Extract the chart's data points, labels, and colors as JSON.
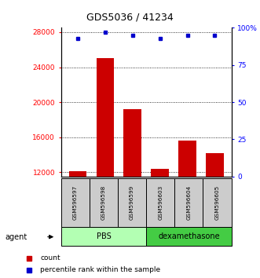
{
  "title": "GDS5036 / 41234",
  "samples": [
    "GSM596597",
    "GSM596598",
    "GSM596599",
    "GSM596603",
    "GSM596604",
    "GSM596605"
  ],
  "counts": [
    12100,
    25000,
    19200,
    12400,
    15600,
    14200
  ],
  "percentile_ranks": [
    93,
    97,
    95,
    93,
    95,
    95
  ],
  "group_colors": {
    "PBS": "#b3ffb3",
    "dexamethasone": "#44cc44"
  },
  "bar_color": "#cc0000",
  "dot_color": "#0000cc",
  "ylim_left": [
    11500,
    28500
  ],
  "ylim_right": [
    0,
    100
  ],
  "yticks_left": [
    12000,
    16000,
    20000,
    24000,
    28000
  ],
  "yticks_right": [
    0,
    25,
    50,
    75,
    100
  ],
  "agent_label": "agent",
  "legend_count_label": "count",
  "legend_percentile_label": "percentile rank within the sample",
  "pbs_count": 3,
  "dexa_count": 3
}
